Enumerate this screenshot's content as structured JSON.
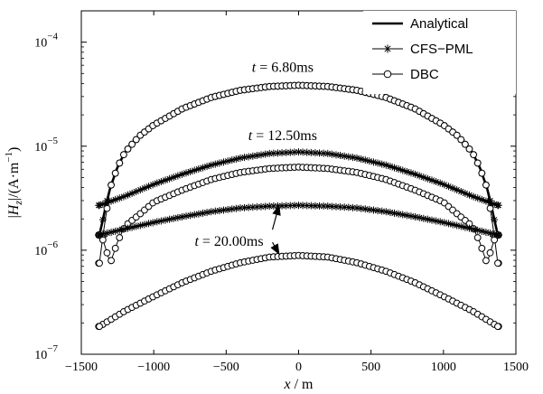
{
  "chart_data": {
    "type": "line",
    "title": "",
    "xlabel": {
      "var": "x",
      "unit": " / m"
    },
    "ylabel": {
      "prefix": "|",
      "var": "H",
      "sub": "z",
      "mid": "|/(A·m",
      "sup": "−1",
      "suffix": ")"
    },
    "xlim": [
      -1500,
      1500
    ],
    "ylim": [
      1e-07,
      0.0002
    ],
    "yscale": "log",
    "grid": false,
    "legend_position": "top-right",
    "x_ticks": [
      -1500,
      -1000,
      -500,
      0,
      500,
      1000,
      1500
    ],
    "x_tick_labels": [
      "−1500",
      "−1000",
      "−500",
      "0",
      "500",
      "1000",
      "1500"
    ],
    "y_ticks": [
      {
        "value": 1e-07,
        "base": "10",
        "exp": "−7"
      },
      {
        "value": 1e-06,
        "base": "10",
        "exp": "−6"
      },
      {
        "value": 1e-05,
        "base": "10",
        "exp": "−5"
      },
      {
        "value": 0.0001,
        "base": "10",
        "exp": "−4"
      }
    ],
    "legend": [
      {
        "name": "Analytical",
        "style": "solid-thick",
        "marker": "none"
      },
      {
        "name": "CFS−PML",
        "style": "thin",
        "marker": "star"
      },
      {
        "name": "DBC",
        "style": "thin",
        "marker": "circle"
      }
    ],
    "annotations": [
      {
        "label": "t = 6.80ms",
        "x": -110,
        "y": 5.2e-05,
        "arrow": false
      },
      {
        "label": "t = 12.50ms",
        "x": -110,
        "y": 1.15e-05,
        "arrow": false
      },
      {
        "label": "t = 20.00ms",
        "x": -480,
        "y": 1.1e-06,
        "arrow": true,
        "arrow_targets": [
          {
            "x": -110,
            "y": 2.7e-06
          },
          {
            "x": -110,
            "y": 9.2e-07
          }
        ]
      }
    ],
    "marker_x_range": [
      -1380,
      1380
    ],
    "marker_count": 97,
    "series": [
      {
        "name": "Analytical",
        "time": "6.80ms",
        "style": "solid-thick",
        "marker": "none",
        "x": [
          -1375,
          -1350,
          -1325,
          -1300,
          -1250,
          -1200,
          -1100,
          -1000,
          -800,
          -600,
          -400,
          -200,
          0,
          200,
          400,
          600,
          800,
          1000,
          1100,
          1200,
          1250,
          1300,
          1325,
          1350,
          1375
        ],
        "y": [
          1.4e-06,
          2e-06,
          2.9e-06,
          4e-06,
          6.3e-06,
          8.7e-06,
          1.25e-05,
          1.6e-05,
          2.3e-05,
          2.95e-05,
          3.45e-05,
          3.75e-05,
          3.85e-05,
          3.75e-05,
          3.45e-05,
          2.95e-05,
          2.3e-05,
          1.6e-05,
          1.25e-05,
          8.7e-06,
          6.3e-06,
          4e-06,
          2.9e-06,
          2e-06,
          1.4e-06
        ]
      },
      {
        "name": "CFS−PML",
        "time": "6.80ms",
        "style": "thin",
        "marker": "star",
        "x": [
          -1375,
          -1350,
          -1325,
          -1300,
          -1250,
          -1200,
          -1100,
          -1000,
          -800,
          -600,
          -400,
          -200,
          0,
          200,
          400,
          600,
          800,
          1000,
          1100,
          1200,
          1250,
          1300,
          1325,
          1350,
          1375
        ],
        "y": [
          1.4e-06,
          2e-06,
          2.9e-06,
          4e-06,
          6.3e-06,
          8.7e-06,
          1.25e-05,
          1.6e-05,
          2.3e-05,
          2.95e-05,
          3.45e-05,
          3.75e-05,
          3.85e-05,
          3.75e-05,
          3.45e-05,
          2.95e-05,
          2.3e-05,
          1.6e-05,
          1.25e-05,
          8.7e-06,
          6.3e-06,
          4e-06,
          2.9e-06,
          2e-06,
          1.4e-06
        ]
      },
      {
        "name": "DBC",
        "time": "6.80ms",
        "style": "thin",
        "marker": "circle",
        "x": [
          -1375,
          -1350,
          -1325,
          -1300,
          -1250,
          -1200,
          -1100,
          -1000,
          -800,
          -600,
          -400,
          -200,
          0,
          200,
          400,
          600,
          800,
          1000,
          1100,
          1200,
          1250,
          1300,
          1325,
          1350,
          1375
        ],
        "y": [
          7.5e-07,
          1.4e-06,
          2.4e-06,
          4e-06,
          6.3e-06,
          8.7e-06,
          1.25e-05,
          1.6e-05,
          2.3e-05,
          2.95e-05,
          3.45e-05,
          3.75e-05,
          3.85e-05,
          3.75e-05,
          3.45e-05,
          2.95e-05,
          2.3e-05,
          1.6e-05,
          1.25e-05,
          8.7e-06,
          6.3e-06,
          4e-06,
          2.4e-06,
          1.4e-06,
          7.5e-07
        ]
      },
      {
        "name": "CFS−PML",
        "time": "12.50ms",
        "style": "thin",
        "marker": "star",
        "x": [
          -1375,
          -1200,
          -1000,
          -800,
          -600,
          -400,
          -200,
          0,
          200,
          400,
          600,
          800,
          1000,
          1200,
          1375
        ],
        "y": [
          2.7e-06,
          3.3e-06,
          4.3e-06,
          5.4e-06,
          6.6e-06,
          7.7e-06,
          8.5e-06,
          8.8e-06,
          8.5e-06,
          7.7e-06,
          6.6e-06,
          5.4e-06,
          4.3e-06,
          3.3e-06,
          2.7e-06
        ]
      },
      {
        "name": "DBC",
        "time": "12.50ms",
        "style": "thin",
        "marker": "circle",
        "x": [
          -1375,
          -1350,
          -1300,
          -1250,
          -1200,
          -1100,
          -1000,
          -800,
          -600,
          -400,
          -200,
          0,
          200,
          400,
          600,
          800,
          1000,
          1100,
          1200,
          1250,
          1300,
          1350,
          1375
        ],
        "y": [
          1.4e-06,
          1.25e-06,
          7.5e-07,
          1.2e-06,
          1.7e-06,
          2.2e-06,
          2.9e-06,
          3.8e-06,
          4.8e-06,
          5.6e-06,
          6.1e-06,
          6.3e-06,
          6.1e-06,
          5.6e-06,
          4.8e-06,
          3.8e-06,
          2.9e-06,
          2.2e-06,
          1.7e-06,
          1.2e-06,
          7.5e-07,
          1.25e-06,
          1.4e-06
        ]
      },
      {
        "name": "CFS−PML",
        "time": "20.00ms",
        "style": "thin",
        "marker": "star",
        "x": [
          -1375,
          -1200,
          -1000,
          -800,
          -600,
          -400,
          -200,
          0,
          200,
          400,
          600,
          800,
          1000,
          1200,
          1375
        ],
        "y": [
          1.4e-06,
          1.6e-06,
          1.85e-06,
          2.1e-06,
          2.35e-06,
          2.55e-06,
          2.65e-06,
          2.7e-06,
          2.65e-06,
          2.55e-06,
          2.35e-06,
          2.1e-06,
          1.85e-06,
          1.6e-06,
          1.4e-06
        ]
      },
      {
        "name": "DBC",
        "time": "20.00ms",
        "style": "thin",
        "marker": "circle",
        "x": [
          -1375,
          -1200,
          -1000,
          -800,
          -600,
          -400,
          -200,
          0,
          200,
          400,
          600,
          800,
          1000,
          1200,
          1375
        ],
        "y": [
          1.85e-07,
          2.6e-07,
          3.6e-07,
          4.9e-07,
          6.3e-07,
          7.6e-07,
          8.6e-07,
          8.9e-07,
          8.6e-07,
          7.6e-07,
          6.3e-07,
          4.9e-07,
          3.6e-07,
          2.6e-07,
          1.85e-07
        ]
      }
    ]
  }
}
